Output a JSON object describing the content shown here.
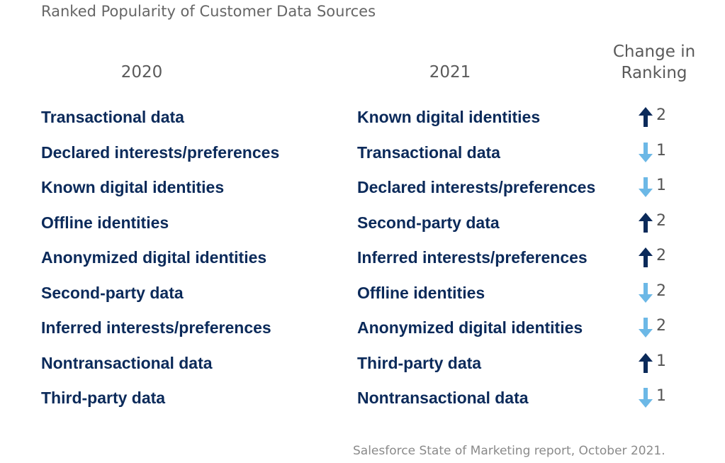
{
  "chart_data": {
    "type": "table",
    "title": "Ranked Popularity of Customer Data Sources",
    "columns": [
      "2020",
      "2021",
      "Change in Ranking"
    ],
    "rows": [
      {
        "y2020": "Transactional data",
        "y2021": "Known digital identities",
        "direction": "up",
        "change": 2
      },
      {
        "y2020": "Declared interests/preferences",
        "y2021": "Transactional data",
        "direction": "down",
        "change": 1
      },
      {
        "y2020": "Known digital identities",
        "y2021": "Declared interests/preferences",
        "direction": "down",
        "change": 1
      },
      {
        "y2020": "Offline identities",
        "y2021": "Second-party data",
        "direction": "up",
        "change": 2
      },
      {
        "y2020": "Anonymized digital identities",
        "y2021": "Inferred interests/preferences",
        "direction": "up",
        "change": 2
      },
      {
        "y2020": "Second-party data",
        "y2021": "Offline identities",
        "direction": "down",
        "change": 2
      },
      {
        "y2020": "Inferred interests/preferences",
        "y2021": "Anonymized digital identities",
        "direction": "down",
        "change": 2
      },
      {
        "y2020": "Nontransactional data",
        "y2021": "Third-party data",
        "direction": "up",
        "change": 1
      },
      {
        "y2020": "Third-party data",
        "y2021": "Nontransactional data",
        "direction": "down",
        "change": 1
      }
    ],
    "source": "Salesforce State of Marketing report, October 2021.",
    "colors": {
      "up": "#0b2a5a",
      "down": "#6cb8e6",
      "text": "#0b2a5a"
    }
  }
}
